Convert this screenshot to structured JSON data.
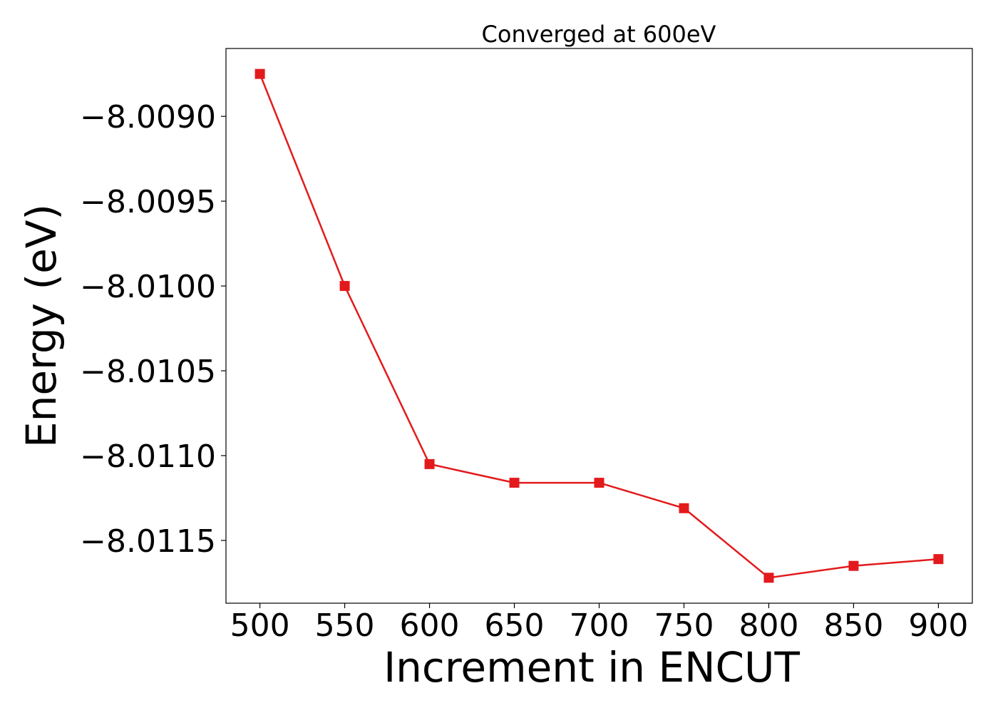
{
  "chart_data": {
    "type": "line",
    "title": "Converged at 600eV",
    "xlabel": "Increment in ENCUT",
    "ylabel": "Energy (eV)",
    "xlim": [
      480,
      920
    ],
    "ylim": [
      -8.01187,
      -8.0086
    ],
    "x_ticks": [
      500,
      550,
      600,
      650,
      700,
      750,
      800,
      850,
      900
    ],
    "y_ticks": [
      -8.009,
      -8.0095,
      -8.01,
      -8.0105,
      -8.011,
      -8.0115
    ],
    "y_tick_labels": [
      "−8.0090",
      "−8.0095",
      "−8.0100",
      "−8.0105",
      "−8.0110",
      "−8.0115"
    ],
    "grid": false,
    "series": [
      {
        "color": "#e31a1c",
        "marker": "square",
        "x": [
          500,
          550,
          600,
          650,
          700,
          750,
          800,
          850,
          900
        ],
        "y": [
          -8.00875,
          -8.01,
          -8.01105,
          -8.01116,
          -8.01116,
          -8.01131,
          -8.01172,
          -8.01165,
          -8.01161
        ]
      }
    ]
  }
}
